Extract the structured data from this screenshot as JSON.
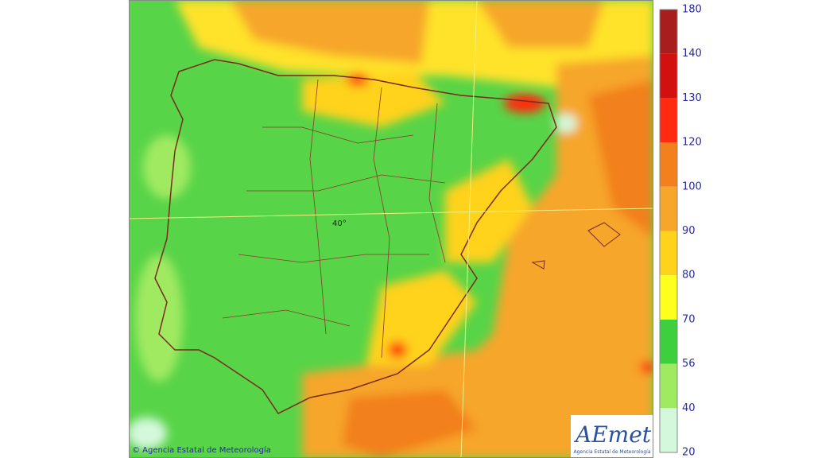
{
  "legend": {
    "ticks": [
      180,
      140,
      130,
      120,
      100,
      90,
      80,
      70,
      56,
      40,
      20
    ],
    "colors": [
      "#a81e1e",
      "#d21010",
      "#ff2a10",
      "#f2801c",
      "#f6a62a",
      "#ffd21c",
      "#ffff1e",
      "#3ecf3e",
      "#a0ea62",
      "#d4f8dc"
    ]
  },
  "map": {
    "latitude_label": "40°"
  },
  "footer": {
    "copyright": "© Agencia Estatal de Meteorología"
  },
  "logo": {
    "name": "AEmet",
    "subtitle": "Agencia Estatal de Meteorología"
  }
}
